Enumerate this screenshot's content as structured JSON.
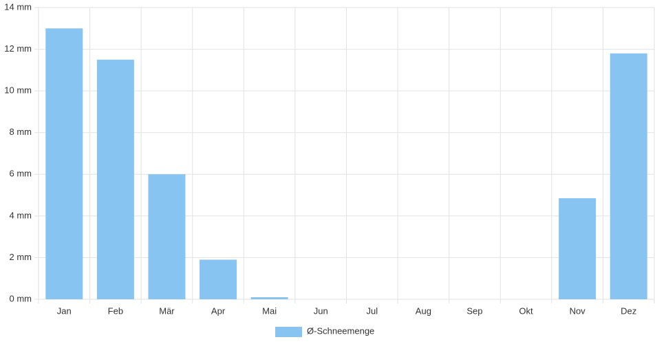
{
  "chart_data": {
    "type": "bar",
    "categories": [
      "Jan",
      "Feb",
      "Mär",
      "Apr",
      "Mai",
      "Jun",
      "Jul",
      "Aug",
      "Sep",
      "Okt",
      "Nov",
      "Dez"
    ],
    "series": [
      {
        "name": "Ø-Schneemenge",
        "color": "#88c4f2",
        "values": [
          13,
          11.5,
          6,
          1.9,
          0.1,
          0,
          0,
          0,
          0,
          0,
          4.85,
          11.8
        ]
      }
    ],
    "ylim": [
      0,
      14
    ],
    "yticks": [
      {
        "value": 0,
        "label": "0 mm"
      },
      {
        "value": 2,
        "label": "2 mm"
      },
      {
        "value": 4,
        "label": "4 mm"
      },
      {
        "value": 6,
        "label": "6 mm"
      },
      {
        "value": 8,
        "label": "8 mm"
      },
      {
        "value": 10,
        "label": "10 mm"
      },
      {
        "value": 12,
        "label": "12 mm"
      },
      {
        "value": 14,
        "label": "14 mm"
      }
    ],
    "grid": true,
    "legend": "bottom"
  }
}
